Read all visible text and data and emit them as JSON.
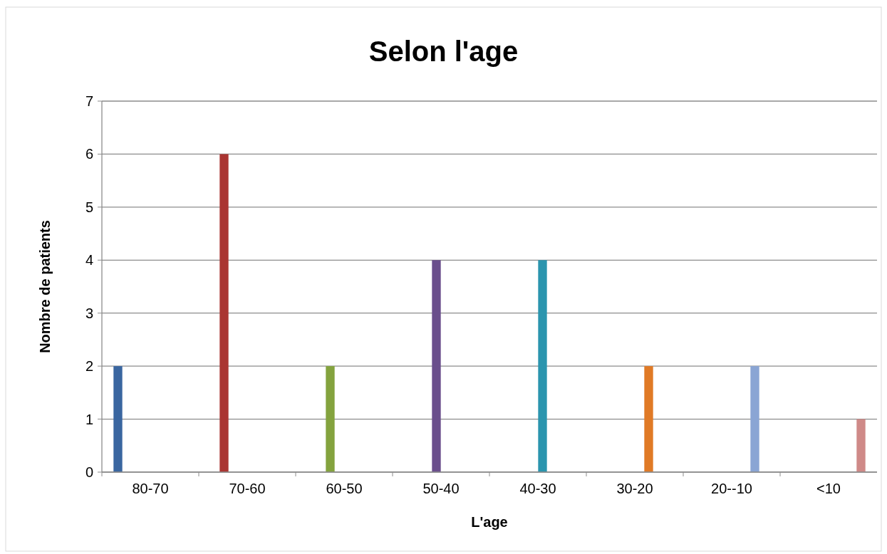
{
  "chart_data": {
    "type": "bar",
    "title": "Selon l'age",
    "xlabel": "L'age",
    "ylabel": "Nombre de patients",
    "categories": [
      "80-70",
      "70-60",
      "60-50",
      "50-40",
      "40-30",
      "30-20",
      "20--10",
      "<10"
    ],
    "series": [
      {
        "color": "#3a66a0",
        "values": [
          2,
          null,
          null,
          null,
          null,
          null,
          null,
          null
        ]
      },
      {
        "color": "#aa3532",
        "values": [
          null,
          6,
          null,
          null,
          null,
          null,
          null,
          null
        ]
      },
      {
        "color": "#84a33e",
        "values": [
          null,
          null,
          2,
          null,
          null,
          null,
          null,
          null
        ]
      },
      {
        "color": "#6a4e8c",
        "values": [
          null,
          null,
          null,
          4,
          null,
          null,
          null,
          null
        ]
      },
      {
        "color": "#2b95ae",
        "values": [
          null,
          null,
          null,
          null,
          4,
          null,
          null,
          null
        ]
      },
      {
        "color": "#e07a26",
        "values": [
          null,
          null,
          null,
          null,
          null,
          2,
          null,
          null
        ]
      },
      {
        "color": "#8aa5d4",
        "values": [
          null,
          null,
          null,
          null,
          null,
          null,
          2,
          null
        ]
      },
      {
        "color": "#cf8a88",
        "values": [
          null,
          null,
          null,
          null,
          null,
          null,
          null,
          1
        ]
      }
    ],
    "ylim": [
      0,
      7
    ],
    "yticks": [
      0,
      1,
      2,
      3,
      4,
      5,
      6,
      7
    ],
    "grid": "y"
  }
}
